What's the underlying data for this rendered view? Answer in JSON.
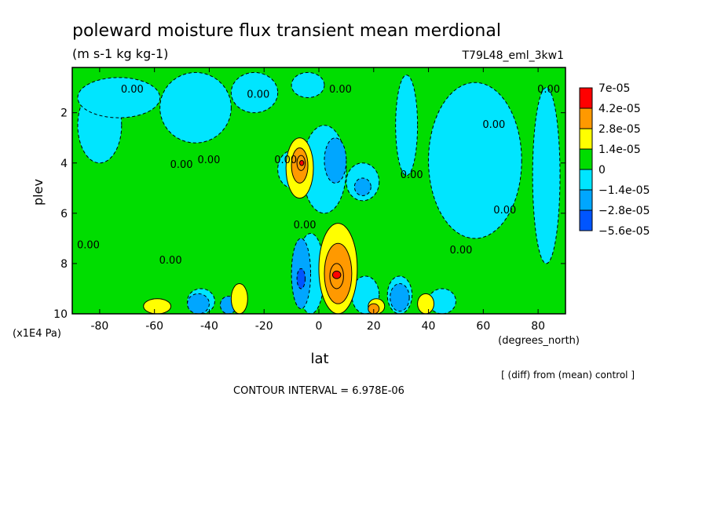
{
  "chart_data": {
    "type": "heatmap",
    "title": "poleward moisture flux transient mean merdional",
    "units": "(m s-1 kg kg-1)",
    "run_label": "T79L48_eml_3kw1",
    "xlabel": "lat",
    "x_units": "(degrees_north)",
    "ylabel": "plev",
    "y_units": "(x1E4 Pa)",
    "x_ticks": [
      "-80",
      "-60",
      "-40",
      "-20",
      "0",
      "20",
      "40",
      "60",
      "80"
    ],
    "x_tick_values": [
      -80,
      -60,
      -40,
      -20,
      0,
      20,
      40,
      60,
      80
    ],
    "xlim": [
      -90,
      90
    ],
    "y_ticks": [
      "2",
      "4",
      "6",
      "8",
      "10"
    ],
    "y_tick_values": [
      2,
      4,
      6,
      8,
      10
    ],
    "ylim": [
      10,
      0.2
    ],
    "contour_interval_label": "CONTOUR INTERVAL = 6.978E-06",
    "diff_note": "[ (diff) from (mean) control ]",
    "contour_zero_label": "0.00",
    "legend": {
      "placement": "right",
      "levels": [
        "7e-05",
        "4.2e-05",
        "2.8e-05",
        "1.4e-05",
        "0",
        "−1.4e-05",
        "−2.8e-05",
        "−5.6e-05"
      ],
      "colors": [
        "#ff0000",
        "#ff9900",
        "#ffff00",
        "#00dd00",
        "#00e5ff",
        "#00a6ff",
        "#0055ff"
      ]
    },
    "background_color": "#00dd00",
    "regions": [
      {
        "band": "-1.4e-05",
        "lon": [
          -88,
          -72
        ],
        "lat_plev": [
          1.0,
          4.0
        ]
      },
      {
        "band": "-1.4e-05",
        "lon": [
          -88,
          -58
        ],
        "lat_plev": [
          0.6,
          2.2
        ]
      },
      {
        "band": "-1.4e-05",
        "lon": [
          -58,
          -32
        ],
        "lat_plev": [
          0.4,
          3.2
        ]
      },
      {
        "band": "-1.4e-05",
        "lon": [
          -32,
          -15
        ],
        "lat_plev": [
          0.4,
          2.0
        ]
      },
      {
        "band": "-1.4e-05",
        "lon": [
          -10,
          2
        ],
        "lat_plev": [
          0.4,
          1.4
        ]
      },
      {
        "band": "-1.4e-05",
        "lon": [
          28,
          36
        ],
        "lat_plev": [
          0.5,
          4.5
        ]
      },
      {
        "band": "-1.4e-05",
        "lon": [
          40,
          74
        ],
        "lat_plev": [
          0.8,
          7.0
        ]
      },
      {
        "band": "-1.4e-05",
        "lon": [
          78,
          88
        ],
        "lat_plev": [
          1.0,
          8.0
        ]
      },
      {
        "band": "-1.4e-05",
        "lon": [
          -15,
          -4
        ],
        "lat_plev": [
          3.5,
          5.0
        ]
      },
      {
        "band": "-1.4e-05",
        "lon": [
          -8,
          2
        ],
        "lat_plev": [
          6.8,
          10.0
        ]
      },
      {
        "band": "-1.4e-05",
        "lon": [
          12,
          22
        ],
        "lat_plev": [
          8.5,
          10.0
        ]
      },
      {
        "band": "-1.4e-05",
        "lon": [
          25,
          34
        ],
        "lat_plev": [
          8.5,
          10.0
        ]
      },
      {
        "band": "-1.4e-05",
        "lon": [
          -48,
          -38
        ],
        "lat_plev": [
          9.0,
          10.0
        ]
      },
      {
        "band": "-1.4e-05",
        "lon": [
          40,
          50
        ],
        "lat_plev": [
          9.0,
          10.0
        ]
      },
      {
        "band": "-1.4e-05",
        "lon": [
          -6,
          10
        ],
        "lat_plev": [
          2.5,
          6.0
        ]
      },
      {
        "band": "-1.4e-05",
        "lon": [
          10,
          22
        ],
        "lat_plev": [
          4.0,
          5.5
        ]
      },
      {
        "band": "-2.8e-05",
        "lon": [
          2,
          10
        ],
        "lat_plev": [
          3.0,
          4.8
        ]
      },
      {
        "band": "-2.8e-05",
        "lon": [
          13,
          19
        ],
        "lat_plev": [
          4.6,
          5.3
        ]
      },
      {
        "band": "-2.8e-05",
        "lon": [
          -10,
          -3
        ],
        "lat_plev": [
          7.0,
          9.8
        ]
      },
      {
        "band": "-2.8e-05",
        "lon": [
          26,
          33
        ],
        "lat_plev": [
          8.8,
          9.9
        ]
      },
      {
        "band": "-2.8e-05",
        "lon": [
          -48,
          -40
        ],
        "lat_plev": [
          9.2,
          10.0
        ]
      },
      {
        "band": "-2.8e-05",
        "lon": [
          -36,
          -30
        ],
        "lat_plev": [
          9.3,
          10.0
        ]
      },
      {
        "band": "-5.6e-05",
        "lon": [
          -8,
          -5
        ],
        "lat_plev": [
          8.2,
          9.0
        ]
      },
      {
        "band": "1.4e-05",
        "lon": [
          -12,
          -2
        ],
        "lat_plev": [
          3.0,
          5.4
        ]
      },
      {
        "band": "1.4e-05",
        "lon": [
          0,
          14
        ],
        "lat_plev": [
          6.4,
          10.0
        ]
      },
      {
        "band": "1.4e-05",
        "lon": [
          -32,
          -26
        ],
        "lat_plev": [
          8.8,
          10.0
        ]
      },
      {
        "band": "1.4e-05",
        "lon": [
          -64,
          -54
        ],
        "lat_plev": [
          9.4,
          10.0
        ]
      },
      {
        "band": "1.4e-05",
        "lon": [
          36,
          42
        ],
        "lat_plev": [
          9.2,
          10.0
        ]
      },
      {
        "band": "1.4e-05",
        "lon": [
          18,
          24
        ],
        "lat_plev": [
          9.4,
          10.0
        ]
      },
      {
        "band": "2.8e-05",
        "lon": [
          -10,
          -4
        ],
        "lat_plev": [
          3.4,
          4.8
        ]
      },
      {
        "band": "2.8e-05",
        "lon": [
          2,
          12
        ],
        "lat_plev": [
          7.2,
          9.6
        ]
      },
      {
        "band": "2.8e-05",
        "lon": [
          18,
          22
        ],
        "lat_plev": [
          9.6,
          10.0
        ]
      },
      {
        "band": "4.2e-05",
        "lon": [
          -8,
          -5
        ],
        "lat_plev": [
          3.7,
          4.3
        ]
      },
      {
        "band": "4.2e-05",
        "lon": [
          4,
          9
        ],
        "lat_plev": [
          8.0,
          9.0
        ]
      },
      {
        "band": "7e-05",
        "lon": [
          5,
          8
        ],
        "lat_plev": [
          8.3,
          8.6
        ]
      },
      {
        "band": "7e-05",
        "lon": [
          -7,
          -5.5
        ],
        "lat_plev": [
          3.9,
          4.1
        ]
      }
    ]
  }
}
